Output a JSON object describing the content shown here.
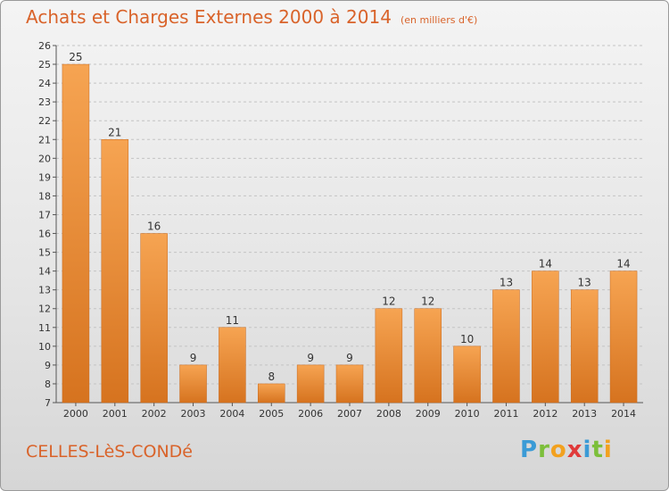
{
  "header": {
    "title": "Achats et Charges Externes 2000 à 2014",
    "unit": "(en milliers d'€)"
  },
  "footer": {
    "town": "CELLES-LèS-CONDé",
    "brand": "Proxiti",
    "brand_letters": [
      "P",
      "r",
      "o",
      "x",
      "i",
      "t",
      "i"
    ]
  },
  "chart_data": {
    "type": "bar",
    "title": "Achats et Charges Externes 2000 à 2014",
    "subtitle": "(en milliers d'€)",
    "categories": [
      "2000",
      "2001",
      "2002",
      "2003",
      "2004",
      "2005",
      "2006",
      "2007",
      "2008",
      "2009",
      "2010",
      "2011",
      "2012",
      "2013",
      "2014"
    ],
    "values": [
      25,
      21,
      16,
      9,
      11,
      8,
      9,
      9,
      12,
      12,
      10,
      13,
      14,
      13,
      14
    ],
    "ylim": [
      7,
      26
    ],
    "yticks": [
      7,
      8,
      9,
      10,
      11,
      12,
      13,
      14,
      15,
      16,
      17,
      18,
      19,
      20,
      21,
      22,
      23,
      24,
      25,
      26
    ],
    "grid": true,
    "bar_color": "#f0963f",
    "bar_color_dark": "#d9742a",
    "title_color": "#d9632a"
  }
}
